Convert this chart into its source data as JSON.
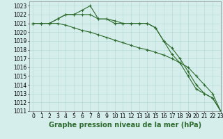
{
  "x": [
    0,
    1,
    2,
    3,
    4,
    5,
    6,
    7,
    8,
    9,
    10,
    11,
    12,
    13,
    14,
    15,
    16,
    17,
    18,
    19,
    20,
    21,
    22,
    23
  ],
  "line1": [
    1021,
    1021,
    1021,
    1021.5,
    1022,
    1022,
    1022.5,
    1023,
    1021.5,
    1021.5,
    1021,
    1021,
    1021,
    1021,
    1021,
    1020.5,
    1019,
    1018.2,
    1017,
    1015.5,
    1014,
    1013,
    1012.5,
    1011
  ],
  "line2": [
    1021,
    1021,
    1021,
    1021.5,
    1022,
    1022,
    1022,
    1022,
    1021.5,
    1021.5,
    1021.3,
    1021,
    1021,
    1021,
    1021,
    1020.5,
    1019,
    1017.5,
    1016.5,
    1015,
    1013.5,
    1013,
    1012.5,
    1011
  ],
  "line3": [
    1021,
    1021,
    1021,
    1021,
    1020.8,
    1020.5,
    1020.2,
    1020,
    1019.7,
    1019.4,
    1019.1,
    1018.8,
    1018.5,
    1018.2,
    1018,
    1017.7,
    1017.4,
    1017,
    1016.5,
    1016,
    1015,
    1014,
    1013,
    1011
  ],
  "bg_color": "#d5eeeb",
  "grid_color": "#b0d8d4",
  "line_color": "#2d6a2d",
  "marker": "+",
  "markersize": 3,
  "markeredgewidth": 0.8,
  "linewidth": 0.8,
  "title": "Graphe pression niveau de la mer (hPa)",
  "title_fontsize": 7,
  "ylabel_fontsize": 5.5,
  "xlabel_fontsize": 5.5,
  "ylim": [
    1011,
    1023.5
  ],
  "xlim": [
    -0.5,
    23
  ],
  "yticks": [
    1011,
    1012,
    1013,
    1014,
    1015,
    1016,
    1017,
    1018,
    1019,
    1020,
    1021,
    1022,
    1023
  ],
  "xticks": [
    0,
    1,
    2,
    3,
    4,
    5,
    6,
    7,
    8,
    9,
    10,
    11,
    12,
    13,
    14,
    15,
    16,
    17,
    18,
    19,
    20,
    21,
    22,
    23
  ]
}
